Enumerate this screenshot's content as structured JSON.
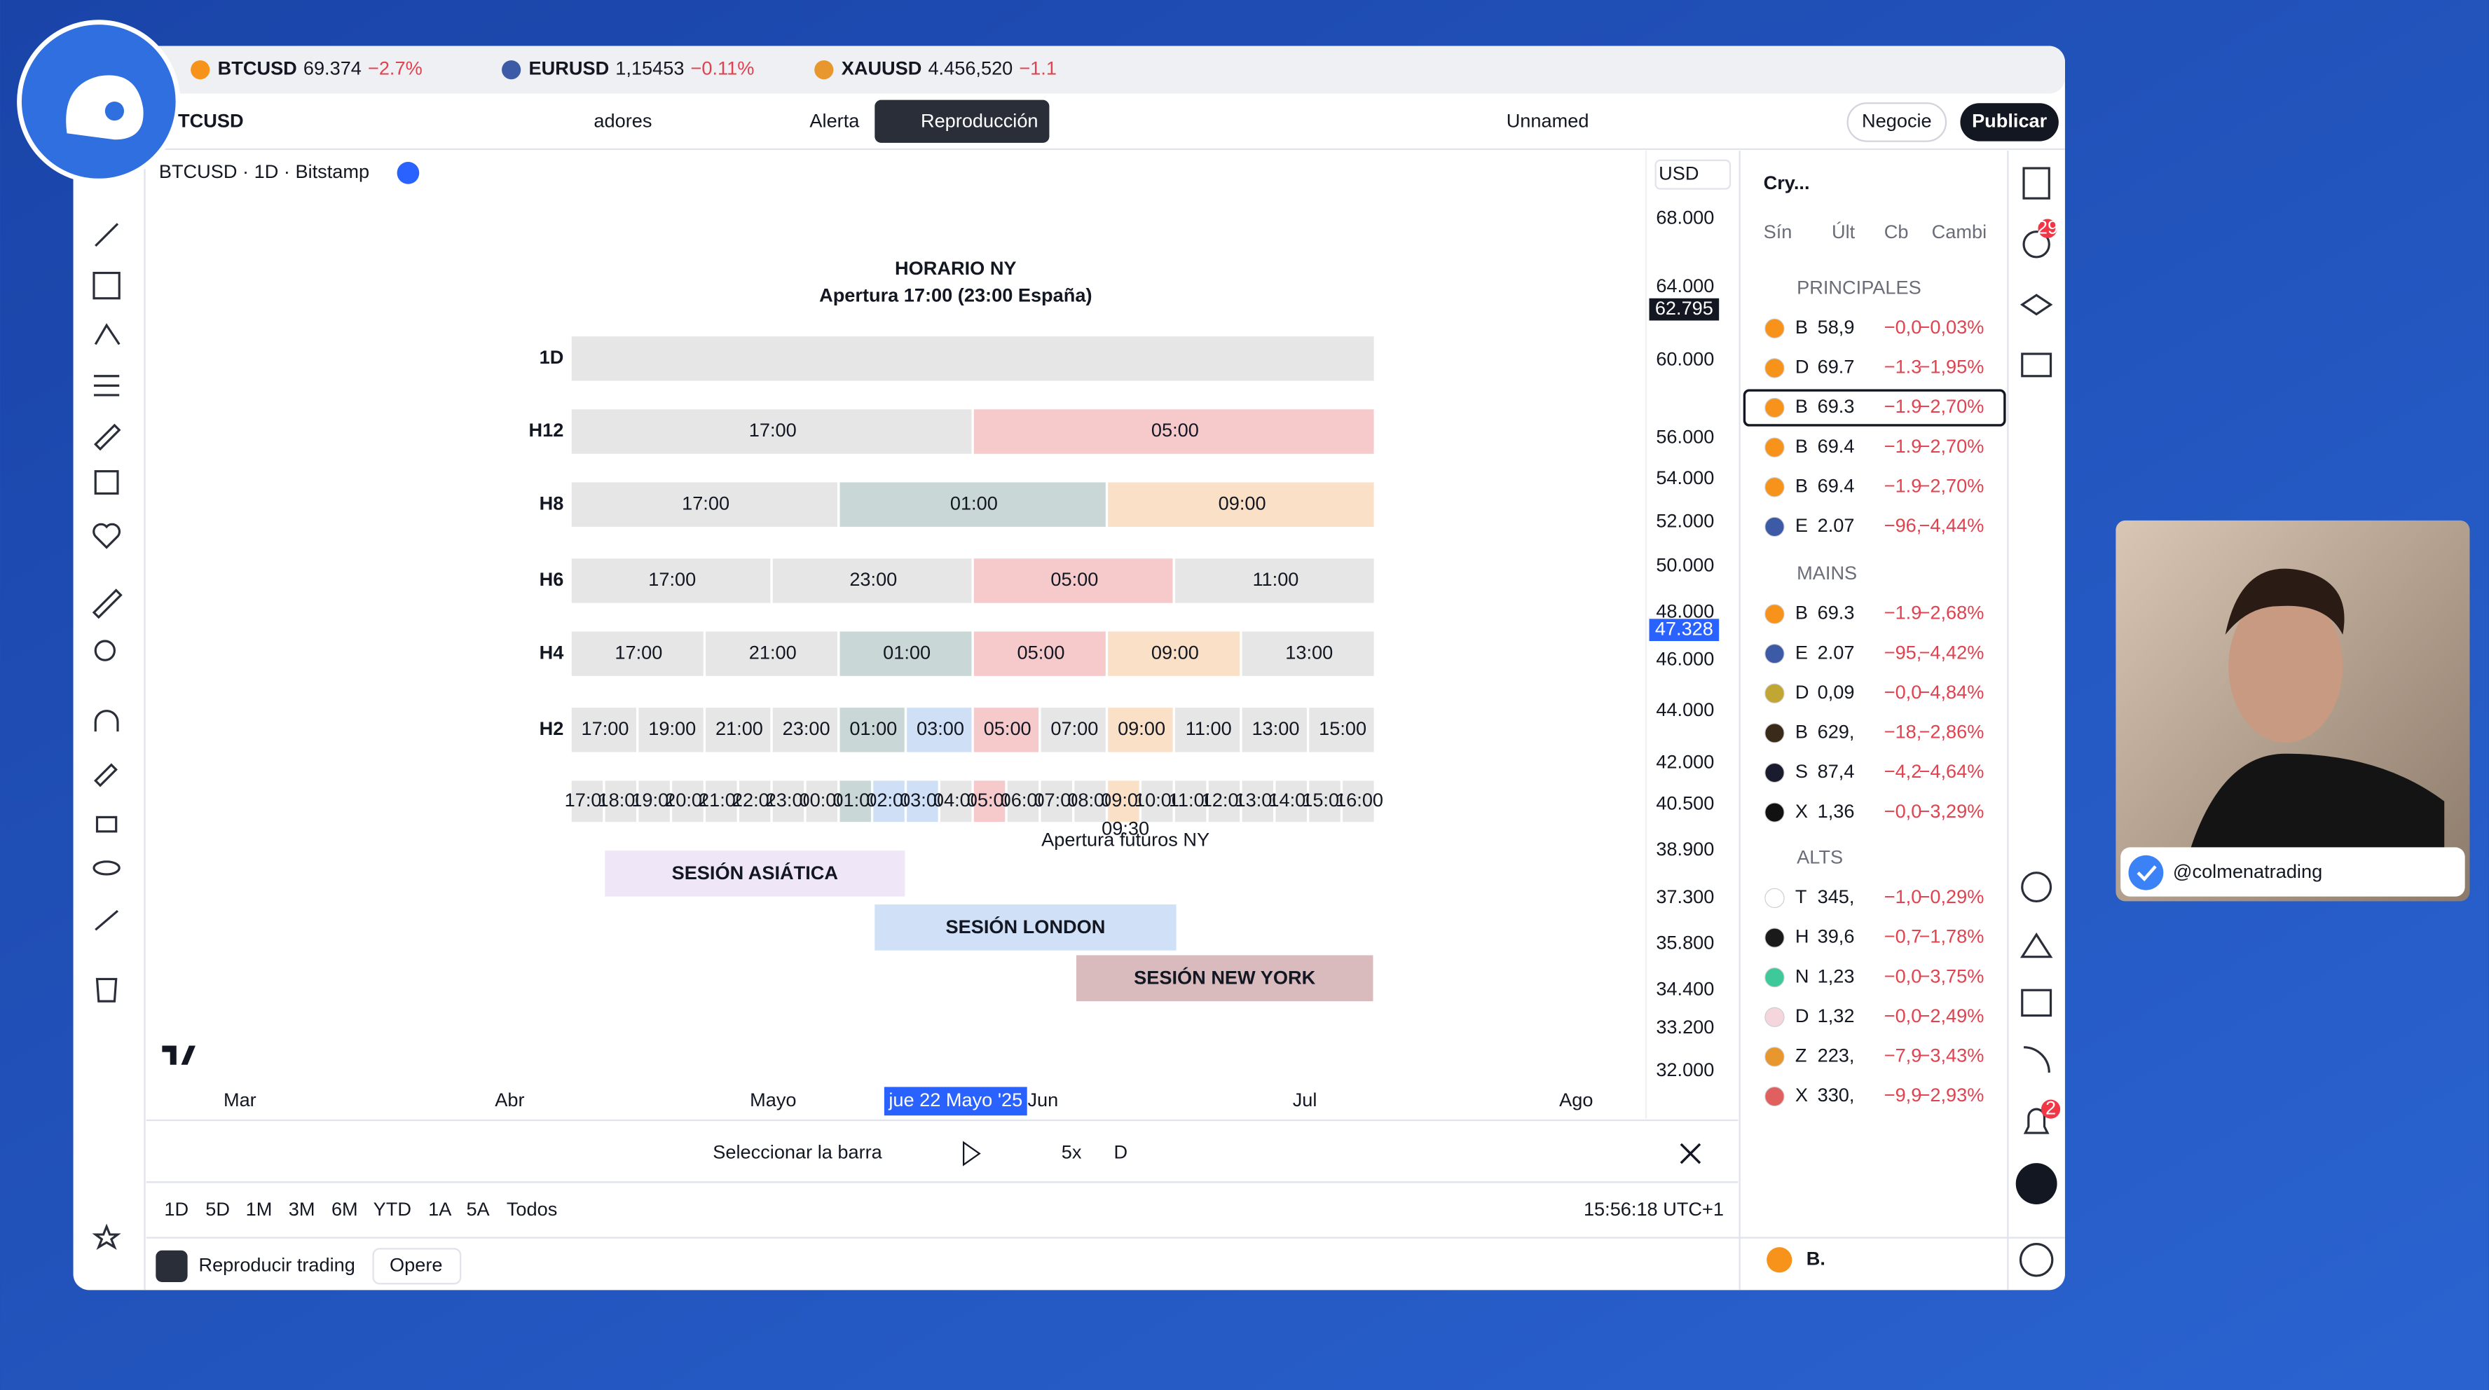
{
  "tabs": [
    {
      "symbol": "BTCUSD",
      "price": "69.374",
      "change": "−2.7%"
    },
    {
      "symbol": "EURUSD",
      "price": "1,15453",
      "change": "−0.11%"
    },
    {
      "symbol": "XAUUSD",
      "price": "4.456,520",
      "change": "−1.1"
    }
  ],
  "toolbar": {
    "symbol": "TCUSD",
    "indicators": "adores",
    "alert": "Alerta",
    "replay": "Reproducción",
    "layout": "Unnamed",
    "trade": "Negocie",
    "publish": "Publicar"
  },
  "chart": {
    "title": "BTCUSD · 1D · Bitstamp",
    "currency": "USD",
    "price_axis": [
      "68.000",
      "64.000",
      "60.000",
      "56.000",
      "54.000",
      "52.000",
      "50.000",
      "48.000",
      "46.000",
      "44.000",
      "42.000",
      "40.500",
      "38.900",
      "37.300",
      "35.800",
      "34.400",
      "33.200",
      "32.000"
    ],
    "last_price": "62.795",
    "cursor_price": "47.328",
    "time_axis": [
      "Mar",
      "Abr",
      "Mayo",
      "Jun",
      "Jul",
      "Ago"
    ],
    "cursor_date": "jue 22 Mayo '25"
  },
  "infographic": {
    "title": "HORARIO NY",
    "subtitle": "Apertura 17:00 (23:00 España)",
    "rows": [
      {
        "label": "1D",
        "cells": [
          {
            "label": null,
            "color": "#e6e6e6"
          }
        ]
      },
      {
        "label": "H12",
        "cells": [
          {
            "label": "17:00",
            "color": "#e6e6e6"
          },
          {
            "label": "05:00",
            "color": "#f6c9cb"
          }
        ]
      },
      {
        "label": "H8",
        "cells": [
          {
            "label": "17:00",
            "color": "#e6e6e6"
          },
          {
            "label": "01:00",
            "color": "#c9d7d7"
          },
          {
            "label": "09:00",
            "color": "#f9e0c6"
          }
        ]
      },
      {
        "label": "H6",
        "cells": [
          {
            "label": "17:00",
            "color": "#e6e6e6"
          },
          {
            "label": "23:00",
            "color": "#e6e6e6"
          },
          {
            "label": "05:00",
            "color": "#f6c9cb"
          },
          {
            "label": "11:00",
            "color": "#e6e6e6"
          }
        ]
      },
      {
        "label": "H4",
        "cells": [
          {
            "label": "17:00",
            "color": "#e6e6e6"
          },
          {
            "label": "21:00",
            "color": "#e6e6e6"
          },
          {
            "label": "01:00",
            "color": "#c9d7d7"
          },
          {
            "label": "05:00",
            "color": "#f6c9cb"
          },
          {
            "label": "09:00",
            "color": "#f9e0c6"
          },
          {
            "label": "13:00",
            "color": "#e6e6e6"
          }
        ]
      },
      {
        "label": "H2",
        "cells": [
          {
            "label": "17:00",
            "color": "#e6e6e6"
          },
          {
            "label": "19:00",
            "color": "#e6e6e6"
          },
          {
            "label": "21:00",
            "color": "#e6e6e6"
          },
          {
            "label": "23:00",
            "color": "#e6e6e6"
          },
          {
            "label": "01:00",
            "color": "#c9d7d7"
          },
          {
            "label": "03:00",
            "color": "#cfdff5"
          },
          {
            "label": "05:00",
            "color": "#f6c9cb"
          },
          {
            "label": "07:00",
            "color": "#e6e6e6"
          },
          {
            "label": "09:00",
            "color": "#f9e0c6"
          },
          {
            "label": "11:00",
            "color": "#e6e6e6"
          },
          {
            "label": "13:00",
            "color": "#e6e6e6"
          },
          {
            "label": "15:00",
            "color": "#e6e6e6"
          }
        ]
      },
      {
        "label": null,
        "cells": [
          {
            "label": "17:00",
            "color": "#e6e6e6"
          },
          {
            "label": "18:00",
            "color": "#e6e6e6"
          },
          {
            "label": "19:00",
            "color": "#e6e6e6"
          },
          {
            "label": "20:00",
            "color": "#e6e6e6"
          },
          {
            "label": "21:00",
            "color": "#e6e6e6"
          },
          {
            "label": "22:00",
            "color": "#e6e6e6"
          },
          {
            "label": "23:00",
            "color": "#e6e6e6"
          },
          {
            "label": "00:00",
            "color": "#e6e6e6"
          },
          {
            "label": "01:00",
            "color": "#c9d7d7"
          },
          {
            "label": "02:00",
            "color": "#cfdff5"
          },
          {
            "label": "03:00",
            "color": "#cfdff5"
          },
          {
            "label": "04:00",
            "color": "#e6e6e6"
          },
          {
            "label": "05:00",
            "color": "#f6c9cb"
          },
          {
            "label": "06:00",
            "color": "#e6e6e6"
          },
          {
            "label": "07:00",
            "color": "#e6e6e6"
          },
          {
            "label": "08:00",
            "color": "#e6e6e6"
          },
          {
            "label": "09:00",
            "color": "#f9e0c6"
          },
          {
            "label": "10:00",
            "color": "#e6e6e6"
          },
          {
            "label": "11:00",
            "color": "#e6e6e6"
          },
          {
            "label": "12:00",
            "color": "#e6e6e6"
          },
          {
            "label": "13:00",
            "color": "#e6e6e6"
          },
          {
            "label": "14:00",
            "color": "#e6e6e6"
          },
          {
            "label": "15:00",
            "color": "#e6e6e6"
          },
          {
            "label": "16:00",
            "color": "#e6e6e6"
          }
        ]
      }
    ],
    "note": {
      "time": "09:30",
      "text": "Apertura futuros NY"
    },
    "sessions": [
      {
        "label": "SESIÓN ASIÁTICA",
        "color": "#efe6f7"
      },
      {
        "label": "SESIÓN LONDON",
        "color": "#cfe0f7"
      },
      {
        "label": "SESIÓN NEW YORK",
        "color": "#d9babd"
      }
    ]
  },
  "replay_bar": {
    "select": "Seleccionar la barra",
    "speed": "5x",
    "interval": "D"
  },
  "ranges": [
    "1D",
    "5D",
    "1M",
    "3M",
    "6M",
    "YTD",
    "1A",
    "5A",
    "Todos"
  ],
  "clock": "15:56:18 UTC+1",
  "bottom_bar": {
    "replay": "Reproducir trading",
    "trade": "Opere"
  },
  "watchlist": {
    "name": "Cry...",
    "columns": [
      "Sín",
      "Últ",
      "Cb",
      "Cambi"
    ],
    "sections": [
      {
        "title": "PRINCIPALES",
        "items": [
          {
            "symbol": "B",
            "last": "58,9",
            "change": "−0,0",
            "percent": "−0,03%",
            "color": "#f7931a"
          },
          {
            "symbol": "D",
            "last": "69.7",
            "change": "−1.3",
            "percent": "−1,95%",
            "color": "#f7931a"
          },
          {
            "symbol": "B",
            "last": "69.3",
            "change": "−1.9",
            "percent": "−2,70%",
            "color": "#f7931a"
          },
          {
            "symbol": "B",
            "last": "69.4",
            "change": "−1.9",
            "percent": "−2,70%",
            "color": "#f7931a"
          },
          {
            "symbol": "B",
            "last": "69.4",
            "change": "−1.9",
            "percent": "−2,70%",
            "color": "#f7931a"
          },
          {
            "symbol": "E",
            "last": "2.07",
            "change": "−96,",
            "percent": "−4,44%",
            "color": "#3c5aa6"
          }
        ]
      },
      {
        "title": "MAINS",
        "items": [
          {
            "symbol": "B",
            "last": "69.3",
            "change": "−1.9",
            "percent": "−2,68%",
            "color": "#f7931a"
          },
          {
            "symbol": "E",
            "last": "2.07",
            "change": "−95,",
            "percent": "−4,42%",
            "color": "#3c5aa6"
          },
          {
            "symbol": "D",
            "last": "0,09",
            "change": "−0,0",
            "percent": "−4,84%",
            "color": "#c2a633"
          },
          {
            "symbol": "B",
            "last": "629,",
            "change": "−18,",
            "percent": "−2,86%",
            "color": "#3a2a1a"
          },
          {
            "symbol": "S",
            "last": "87,4",
            "change": "−4,2",
            "percent": "−4,64%",
            "color": "#1b1b2f"
          },
          {
            "symbol": "X",
            "last": "1,36",
            "change": "−0,0",
            "percent": "−3,29%",
            "color": "#111111"
          }
        ]
      },
      {
        "title": "ALTS",
        "items": [
          {
            "symbol": "T",
            "last": "345,",
            "change": "−1,0",
            "percent": "−0,29%",
            "color": "#ffffff"
          },
          {
            "symbol": "H",
            "last": "39,6",
            "change": "−0,7",
            "percent": "−1,78%",
            "color": "#1a1a1a"
          },
          {
            "symbol": "N",
            "last": "1,23",
            "change": "−0,0",
            "percent": "−3,75%",
            "color": "#3ec99b"
          },
          {
            "symbol": "D",
            "last": "1,32",
            "change": "−0,0",
            "percent": "−2,49%",
            "color": "#f4d6dc"
          },
          {
            "symbol": "Z",
            "last": "223,",
            "change": "−7,9",
            "percent": "−3,43%",
            "color": "#e8962e"
          },
          {
            "symbol": "X",
            "last": "330,",
            "change": "−9,9",
            "percent": "−2,93%",
            "color": "#e06060"
          }
        ]
      }
    ],
    "footer": "B."
  },
  "badges": {
    "alerts": "29",
    "notifications": "2"
  },
  "webcam": {
    "handle": "@colmenatrading"
  }
}
